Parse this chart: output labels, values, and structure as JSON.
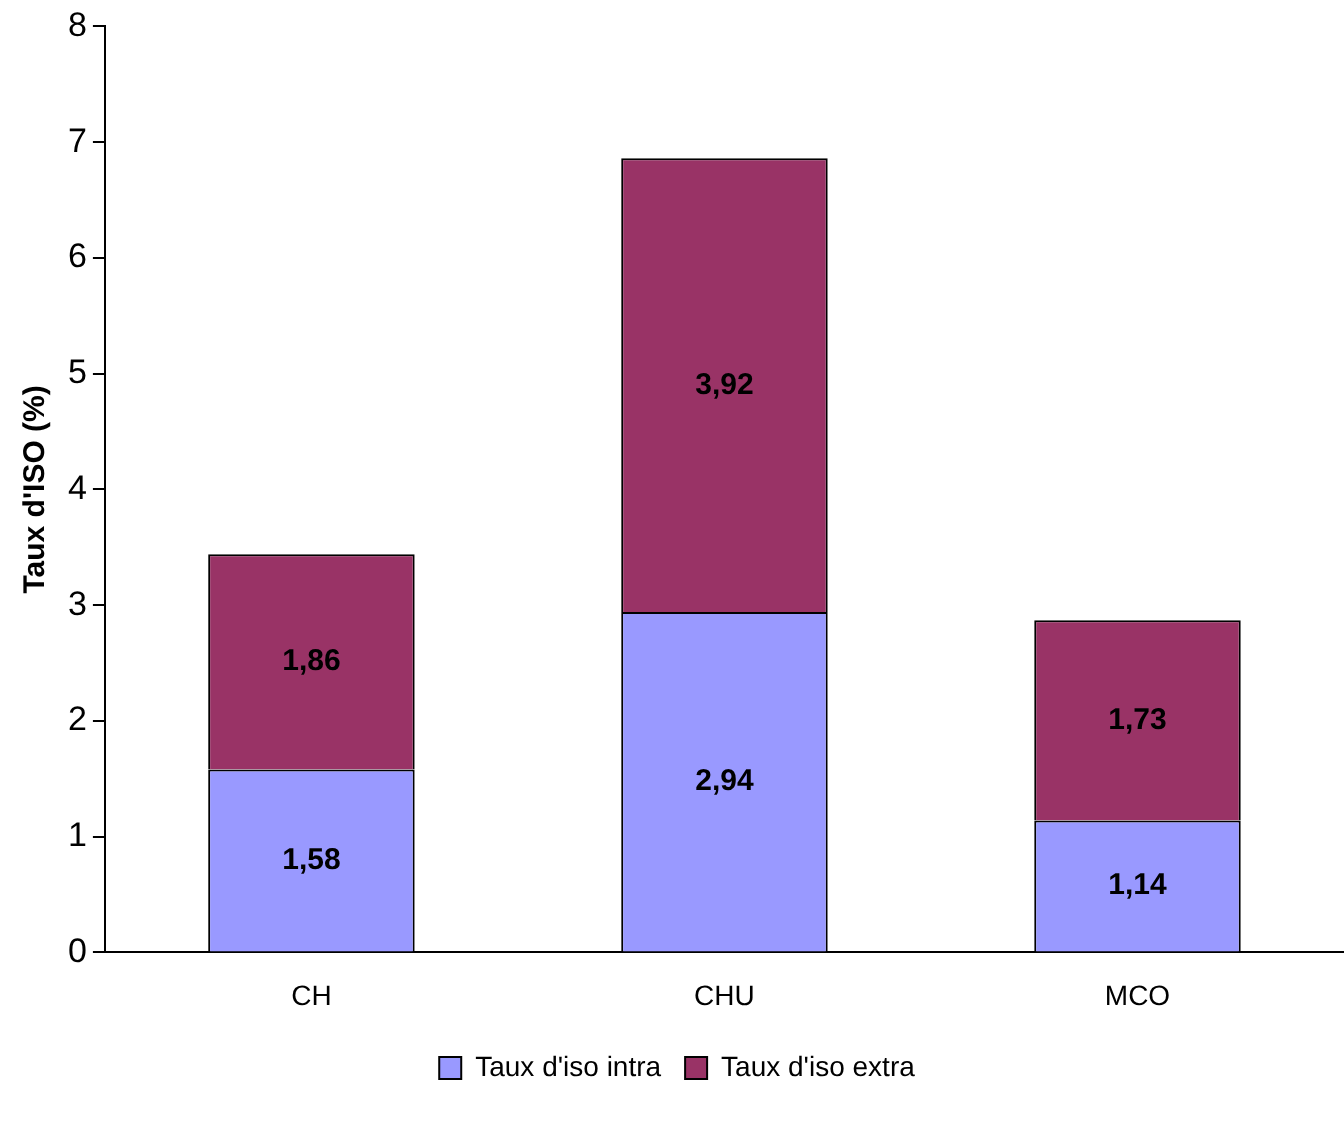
{
  "chart_data": {
    "type": "bar",
    "ylabel": "Taux d'ISO (%)",
    "categories": [
      "CH",
      "CHU",
      "MCO"
    ],
    "stacked": true,
    "series": [
      {
        "name": "Taux d'iso intra",
        "color": "#9999ff",
        "values": [
          1.58,
          2.94,
          1.14
        ],
        "value_labels": [
          "1,58",
          "2,94",
          "1,14"
        ]
      },
      {
        "name": "Taux d'iso extra",
        "color": "#993366",
        "values": [
          1.86,
          3.92,
          1.73
        ],
        "value_labels": [
          "1,86",
          "3,92",
          "1,73"
        ]
      }
    ],
    "ylim": [
      0,
      8
    ],
    "yticks": [
      0,
      1,
      2,
      3,
      4,
      5,
      6,
      7,
      8
    ],
    "grid": false,
    "legend": "bottom"
  }
}
